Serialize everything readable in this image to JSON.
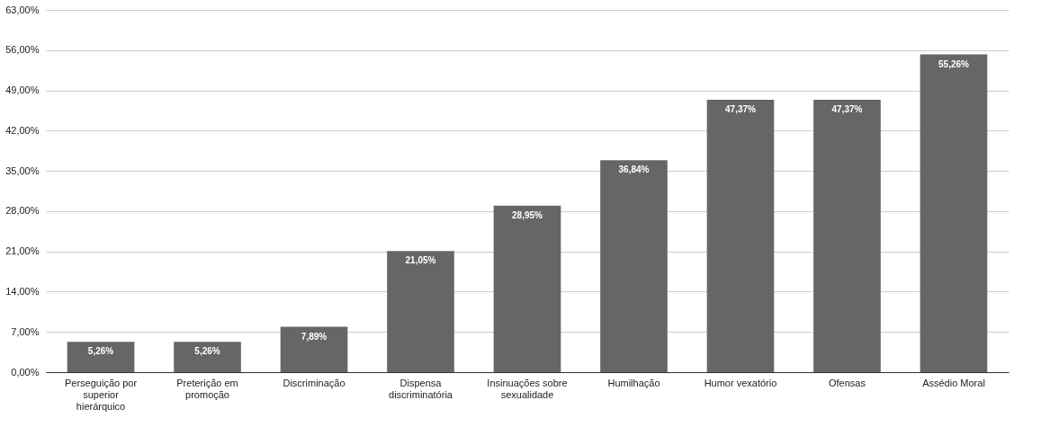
{
  "chart_data": {
    "type": "bar",
    "categories": [
      "Perseguição por superior hierárquico",
      "Preterição em promoção",
      "Discriminação",
      "Dispensa discriminatória",
      "Insinuações sobre sexualidade",
      "Humilhação",
      "Humor vexatório",
      "Ofensas",
      "Assédio Moral"
    ],
    "values": [
      5.26,
      5.26,
      7.89,
      21.05,
      28.95,
      36.84,
      47.37,
      47.37,
      55.26
    ],
    "value_labels": [
      "5,26%",
      "5,26%",
      "7,89%",
      "21,05%",
      "28,95%",
      "36,84%",
      "47,37%",
      "47,37%",
      "55,26%"
    ],
    "color": "#666666",
    "ylim": [
      0,
      63
    ],
    "yticks": [
      {
        "value": 0,
        "label": "0,00%"
      },
      {
        "value": 7,
        "label": "7,00%"
      },
      {
        "value": 14,
        "label": "14,00%"
      },
      {
        "value": 21,
        "label": "21,00%"
      },
      {
        "value": 28,
        "label": "28,00%"
      },
      {
        "value": 35,
        "label": "35,00%"
      },
      {
        "value": 42,
        "label": "42,00%"
      },
      {
        "value": 49,
        "label": "49,00%"
      },
      {
        "value": 56,
        "label": "56,00%"
      },
      {
        "value": 63,
        "label": "63,00%"
      }
    ],
    "grid": "y"
  }
}
